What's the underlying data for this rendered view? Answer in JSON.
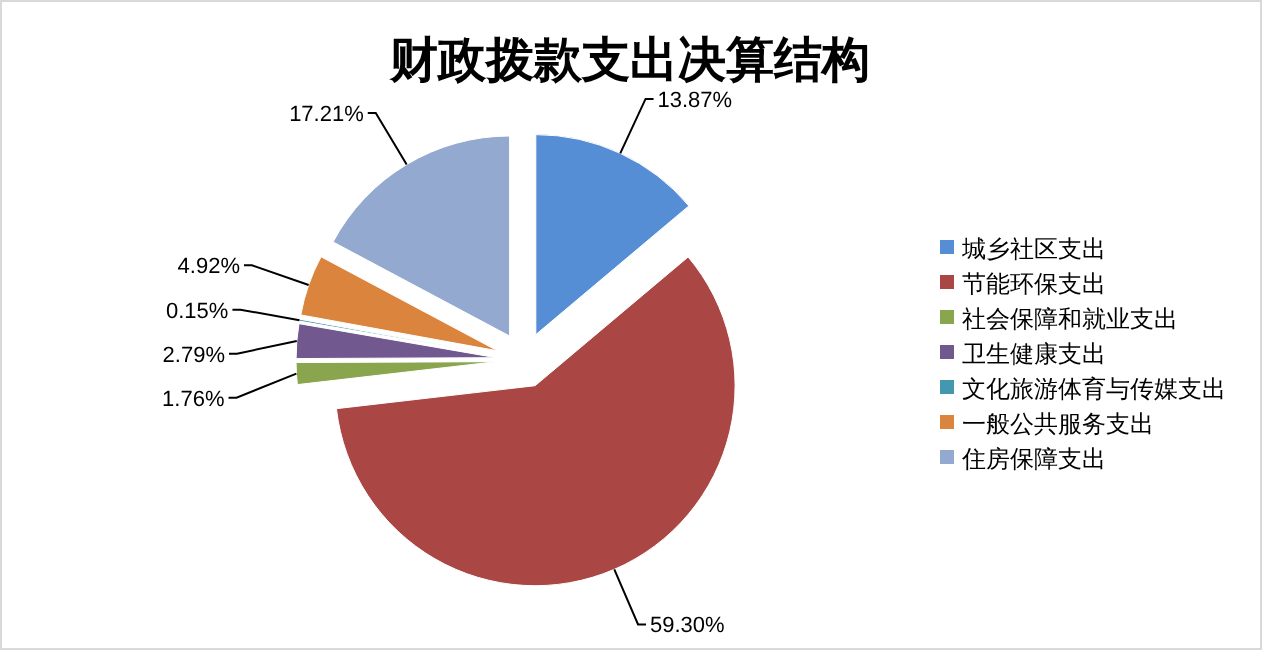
{
  "chart_data": {
    "type": "pie",
    "title": "财政拨款支出决算结构",
    "categories": [
      "城乡社区支出",
      "节能环保支出",
      "社会保障和就业支出",
      "卫生健康支出",
      "文化旅游体育与传媒支出",
      "一般公共服务支出",
      "住房保障支出"
    ],
    "values": [
      13.87,
      59.3,
      1.76,
      2.79,
      0.15,
      4.92,
      17.21
    ],
    "colors": [
      "#558ed5",
      "#aa4643",
      "#89a54e",
      "#71588f",
      "#4198af",
      "#db843d",
      "#93a9cf"
    ],
    "value_labels": [
      "13.87%",
      "59.30%",
      "1.76%",
      "2.79%",
      "0.15%",
      "4.92%",
      "17.21%"
    ],
    "legend": "right"
  }
}
